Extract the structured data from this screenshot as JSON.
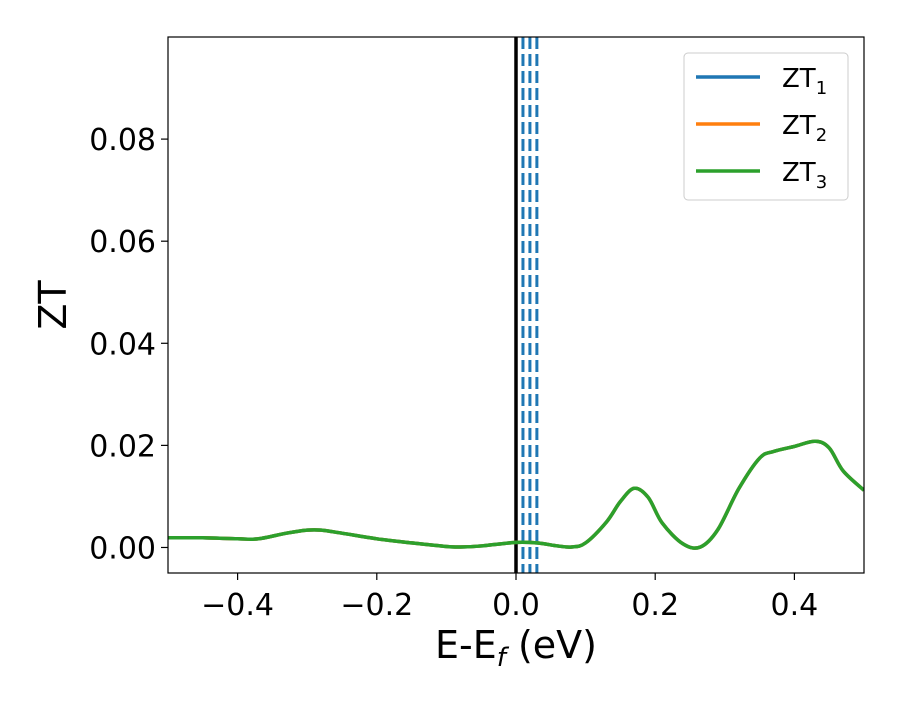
{
  "chart_data": {
    "type": "line",
    "title": "",
    "xlabel": {
      "main": "E-E",
      "sub": "f",
      "unit": " (eV)"
    },
    "ylabel": "ZT",
    "xlim": [
      -0.5,
      0.5
    ],
    "ylim": [
      -0.005,
      0.1
    ],
    "x_ticks": [
      {
        "value": -0.4,
        "label": "−0.4"
      },
      {
        "value": -0.2,
        "label": "−0.2"
      },
      {
        "value": 0.0,
        "label": "0.0"
      },
      {
        "value": 0.2,
        "label": "0.2"
      },
      {
        "value": 0.4,
        "label": "0.4"
      }
    ],
    "y_ticks": [
      {
        "value": 0.0,
        "label": "0.00"
      },
      {
        "value": 0.02,
        "label": "0.02"
      },
      {
        "value": 0.04,
        "label": "0.04"
      },
      {
        "value": 0.06,
        "label": "0.06"
      },
      {
        "value": 0.08,
        "label": "0.08"
      }
    ],
    "grid": false,
    "legend_position": "top-right",
    "x": [
      -0.5,
      -0.45,
      -0.4,
      -0.37,
      -0.33,
      -0.3,
      -0.28,
      -0.25,
      -0.2,
      -0.15,
      -0.1,
      -0.08,
      -0.05,
      0.0,
      0.03,
      0.06,
      0.08,
      0.1,
      0.13,
      0.15,
      0.17,
      0.19,
      0.21,
      0.24,
      0.265,
      0.29,
      0.32,
      0.35,
      0.37,
      0.4,
      0.43,
      0.45,
      0.47,
      0.5
    ],
    "series": [
      {
        "name": "ZT",
        "sub": "1",
        "color": "#1f77b4",
        "values": [
          0.0019,
          0.0019,
          0.0017,
          0.0017,
          0.0028,
          0.0034,
          0.0034,
          0.0028,
          0.0017,
          0.0009,
          0.0002,
          0.0001,
          0.0003,
          0.001,
          0.0009,
          0.0003,
          0.0001,
          0.0009,
          0.005,
          0.009,
          0.0116,
          0.0098,
          0.0048,
          0.0007,
          0.0001,
          0.0035,
          0.0115,
          0.0175,
          0.0188,
          0.0198,
          0.0208,
          0.0195,
          0.015,
          0.0112
        ]
      },
      {
        "name": "ZT",
        "sub": "2",
        "color": "#ff7f0e",
        "values": [
          0.0019,
          0.0019,
          0.0017,
          0.0017,
          0.0028,
          0.0034,
          0.0034,
          0.0028,
          0.0017,
          0.0009,
          0.0002,
          0.0001,
          0.0003,
          0.001,
          0.0009,
          0.0003,
          0.0001,
          0.0009,
          0.005,
          0.009,
          0.0116,
          0.0098,
          0.0048,
          0.0007,
          0.0001,
          0.0035,
          0.0115,
          0.0175,
          0.0188,
          0.0198,
          0.0208,
          0.0195,
          0.015,
          0.0112
        ]
      },
      {
        "name": "ZT",
        "sub": "3",
        "color": "#2ca02c",
        "values": [
          0.0019,
          0.0019,
          0.0017,
          0.0017,
          0.0028,
          0.0034,
          0.0034,
          0.0028,
          0.0017,
          0.0009,
          0.0002,
          0.0001,
          0.0003,
          0.001,
          0.0009,
          0.0003,
          0.0001,
          0.0009,
          0.005,
          0.009,
          0.0116,
          0.0098,
          0.0048,
          0.0007,
          0.0001,
          0.0035,
          0.0115,
          0.0175,
          0.0188,
          0.0198,
          0.0208,
          0.0195,
          0.015,
          0.0112
        ]
      }
    ],
    "vertical_lines": [
      {
        "x": 0.0,
        "color": "#000000",
        "style": "solid"
      },
      {
        "x": 0.01,
        "color": "#1f77b4",
        "style": "dashed"
      },
      {
        "x": 0.02,
        "color": "#1f77b4",
        "style": "dashed"
      },
      {
        "x": 0.03,
        "color": "#1f77b4",
        "style": "dashed"
      }
    ]
  }
}
